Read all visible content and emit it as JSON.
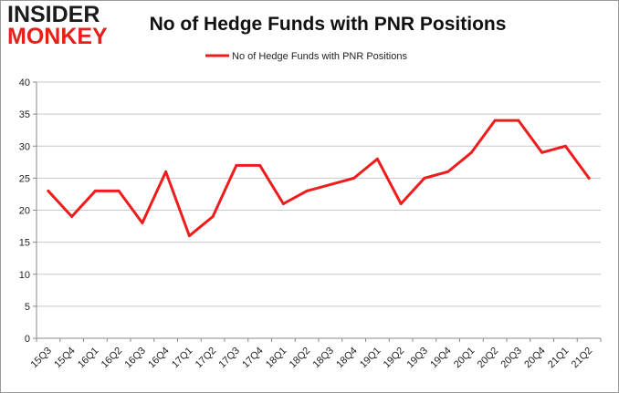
{
  "logo": {
    "line1": "INSIDER",
    "line2": "MONKEY"
  },
  "chart_data": {
    "type": "line",
    "title": "No of Hedge Funds with PNR Positions",
    "xlabel": "",
    "ylabel": "",
    "categories": [
      "15Q3",
      "15Q4",
      "16Q1",
      "16Q2",
      "16Q3",
      "16Q4",
      "17Q1",
      "17Q2",
      "17Q3",
      "17Q4",
      "18Q1",
      "18Q2",
      "18Q3",
      "18Q4",
      "19Q1",
      "19Q2",
      "19Q3",
      "19Q4",
      "20Q1",
      "20Q2",
      "20Q3",
      "20Q4",
      "21Q1",
      "21Q2"
    ],
    "series": [
      {
        "name": "No of Hedge Funds with PNR Positions",
        "color": "#ee1c1c",
        "values": [
          23,
          19,
          23,
          23,
          18,
          26,
          16,
          19,
          27,
          27,
          21,
          23,
          24,
          25,
          28,
          21,
          25,
          26,
          29,
          34,
          34,
          29,
          30,
          25
        ]
      }
    ],
    "ylim": [
      0,
      40
    ],
    "yticks": [
      0,
      5,
      10,
      15,
      20,
      25,
      30,
      35,
      40
    ],
    "grid": true,
    "legend": "top-center"
  }
}
